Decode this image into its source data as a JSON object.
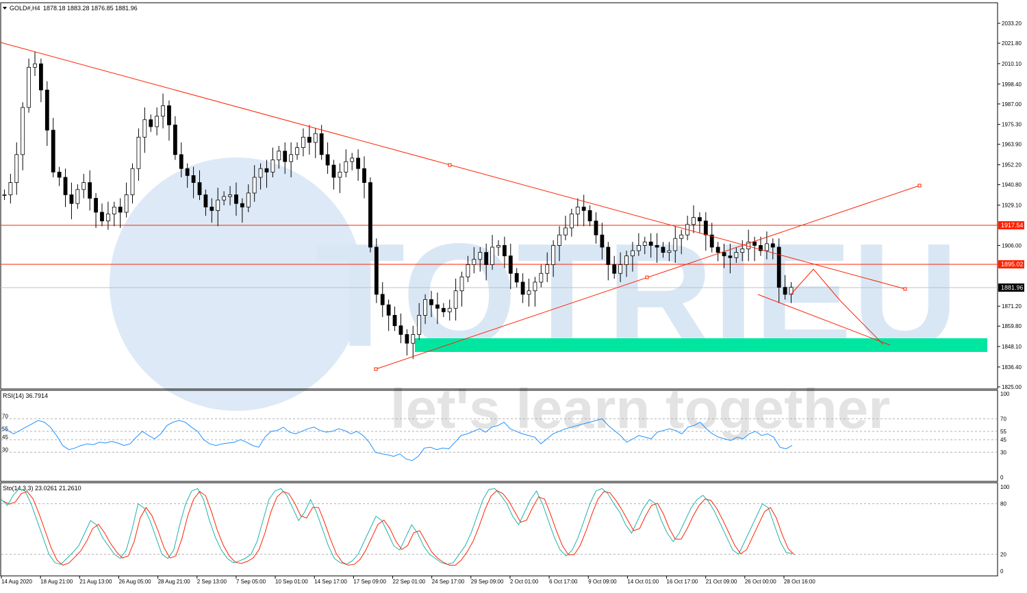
{
  "header": {
    "symbol_text": "GOLD#,H4",
    "ohlc_text": "1878.18 1883.28 1876.85 1881.96"
  },
  "price_axis": {
    "ticks": [
      "2033.20",
      "2021.80",
      "2010.10",
      "1998.40",
      "1987.00",
      "1975.30",
      "1963.90",
      "1952.20",
      "1940.80",
      "1929.10",
      "1906.00",
      "1871.20",
      "1859.80",
      "1848.10",
      "1836.40",
      "1825.00"
    ],
    "tick_values": [
      2033.2,
      2021.8,
      2010.1,
      1998.4,
      1987.0,
      1975.3,
      1963.9,
      1952.2,
      1940.8,
      1929.1,
      1906.0,
      1871.2,
      1859.8,
      1848.1,
      1836.4,
      1825.0
    ],
    "range": [
      1823.7,
      2045.0
    ]
  },
  "price_levels": [
    {
      "label": "1917.54",
      "value": 1917.54,
      "color": "#ff2200",
      "kind": "horizontal-line"
    },
    {
      "label": "1895.02",
      "value": 1895.02,
      "color": "#ff2200",
      "kind": "horizontal-line"
    },
    {
      "label": "1881.96",
      "value": 1881.96,
      "color": "#000000",
      "kind": "current-price"
    }
  ],
  "time_axis": {
    "labels": [
      "14 Aug 2020",
      "18 Aug 21:00",
      "21 Aug 13:00",
      "26 Aug 05:00",
      "28 Aug 21:00",
      "2 Sep 13:00",
      "7 Sep 05:00",
      "10 Sep 01:00",
      "14 Sep 17:00",
      "17 Sep 09:00",
      "22 Sep 01:00",
      "24 Sep 17:00",
      "29 Sep 09:00",
      "2 Oct 01:00",
      "6 Oct 17:00",
      "9 Oct 09:00",
      "14 Oct 01:00",
      "16 Oct 17:00",
      "21 Oct 09:00",
      "26 Oct 00:00",
      "28 Oct 16:00"
    ]
  },
  "rsi": {
    "label_text": "RSI(14) 36.7914",
    "value": 36.7914,
    "levels": [
      70,
      55,
      45,
      30
    ],
    "axis_labels": [
      "100",
      "70",
      "55",
      "45",
      "30",
      "0"
    ],
    "color": "#1e90ff",
    "values": [
      59,
      56,
      52,
      56,
      60,
      64,
      68,
      66,
      60,
      50,
      38,
      33,
      35,
      38,
      40,
      39,
      42,
      41,
      43,
      41,
      38,
      40,
      48,
      55,
      50,
      46,
      52,
      62,
      66,
      68,
      66,
      60,
      55,
      45,
      40,
      38,
      40,
      41,
      42,
      45,
      42,
      38,
      36,
      48,
      55,
      56,
      60,
      54,
      52,
      55,
      58,
      60,
      56,
      54,
      55,
      58,
      56,
      52,
      55,
      50,
      42,
      30,
      28,
      27,
      25,
      28,
      22,
      20,
      25,
      35,
      36,
      33,
      35,
      34,
      42,
      50,
      52,
      55,
      58,
      54,
      60,
      62,
      66,
      58,
      55,
      52,
      50,
      48,
      40,
      46,
      52,
      55,
      58,
      60,
      62,
      64,
      66,
      68,
      70,
      62,
      56,
      50,
      42,
      46,
      50,
      48,
      46,
      54,
      56,
      58,
      56,
      52,
      60,
      62,
      66,
      58,
      52,
      48,
      46,
      44,
      48,
      46,
      52,
      55,
      50,
      52,
      48,
      36,
      34,
      38
    ],
    "last_value": 36.7914
  },
  "stochastic": {
    "label_text": "Sto(14,3,3) 23.0261 21.2610",
    "main": 23.0261,
    "signal": 21.261,
    "levels": [
      80,
      20
    ],
    "axis_labels": [
      "100",
      "80",
      "20",
      "0"
    ],
    "main_color": "#20b2aa",
    "signal_color": "#ff2200",
    "values": [
      85,
      78,
      90,
      98,
      95,
      80,
      60,
      40,
      20,
      10,
      8,
      15,
      22,
      30,
      45,
      60,
      55,
      40,
      30,
      20,
      15,
      25,
      50,
      80,
      75,
      60,
      40,
      20,
      15,
      25,
      55,
      80,
      95,
      98,
      85,
      60,
      40,
      25,
      15,
      10,
      12,
      15,
      20,
      35,
      60,
      85,
      95,
      98,
      90,
      75,
      60,
      70,
      85,
      70,
      50,
      30,
      15,
      10,
      8,
      12,
      20,
      35,
      50,
      65,
      60,
      45,
      30,
      25,
      40,
      55,
      45,
      30,
      20,
      15,
      10,
      8,
      10,
      20,
      30,
      45,
      65,
      85,
      97,
      98,
      90,
      80,
      65,
      55,
      70,
      85,
      95,
      80,
      60,
      40,
      25,
      18,
      25,
      40,
      60,
      80,
      95,
      98,
      92,
      80,
      70,
      55,
      45,
      60,
      75,
      85,
      80,
      60,
      45,
      35,
      45,
      60,
      75,
      85,
      90,
      82,
      70,
      55,
      40,
      25,
      20,
      35,
      50,
      65,
      80,
      75,
      55,
      35,
      22,
      21
    ]
  },
  "price_series": {
    "color": "#000000",
    "closes": [
      1935,
      1942,
      1958,
      1985,
      2008,
      2010,
      1995,
      1972,
      1948,
      1945,
      1935,
      1930,
      1938,
      1942,
      1933,
      1925,
      1920,
      1924,
      1928,
      1925,
      1935,
      1950,
      1968,
      1978,
      1974,
      1980,
      1986,
      1975,
      1958,
      1950,
      1946,
      1942,
      1935,
      1928,
      1926,
      1932,
      1934,
      1935,
      1930,
      1928,
      1936,
      1945,
      1950,
      1948,
      1955,
      1960,
      1954,
      1958,
      1962,
      1968,
      1965,
      1970,
      1958,
      1952,
      1945,
      1948,
      1954,
      1956,
      1950,
      1942,
      1905,
      1878,
      1872,
      1866,
      1860,
      1855,
      1850,
      1855,
      1866,
      1875,
      1872,
      1870,
      1868,
      1870,
      1880,
      1888,
      1895,
      1898,
      1902,
      1895,
      1905,
      1906,
      1900,
      1890,
      1885,
      1878,
      1880,
      1885,
      1890,
      1895,
      1906,
      1912,
      1916,
      1924,
      1928,
      1926,
      1920,
      1912,
      1905,
      1895,
      1890,
      1895,
      1900,
      1903,
      1906,
      1908,
      1906,
      1905,
      1902,
      1903,
      1910,
      1912,
      1918,
      1922,
      1920,
      1912,
      1905,
      1902,
      1900,
      1899,
      1902,
      1904,
      1908,
      1906,
      1903,
      1907,
      1905,
      1882,
      1878,
      1881.96
    ]
  },
  "chart_data": {
    "type": "line",
    "title": "GOLD#,H4",
    "subtitle": "1878.18 1883.28 1876.85 1881.96",
    "xlabel": "",
    "ylabel": "",
    "ylim": [
      1825.0,
      2033.2
    ],
    "categories": [
      "14 Aug 2020",
      "18 Aug 21:00",
      "21 Aug 13:00",
      "26 Aug 05:00",
      "28 Aug 21:00",
      "2 Sep 13:00",
      "7 Sep 05:00",
      "10 Sep 01:00",
      "14 Sep 17:00",
      "17 Sep 09:00",
      "22 Sep 01:00",
      "24 Sep 17:00",
      "29 Sep 09:00",
      "2 Oct 01:00",
      "6 Oct 17:00",
      "9 Oct 09:00",
      "14 Oct 01:00",
      "16 Oct 17:00",
      "21 Oct 09:00",
      "26 Oct 00:00",
      "28 Oct 16:00"
    ],
    "series": [
      {
        "values": [
          1945,
          2005,
          1930,
          1925,
          1985,
          1935,
          1925,
          1950,
          1968,
          1950,
          1875,
          1852,
          1890,
          1910,
          1880,
          1928,
          1888,
          1908,
          1925,
          1905,
          1882
        ]
      }
    ],
    "horizontal_levels": [
      1917.54,
      1895.02
    ],
    "current_price": 1881.96,
    "grid": false,
    "legend": "none"
  },
  "watermark": {
    "brand_text": "TOTRIEU",
    "tagline_text": "let's learn together",
    "color": "#d6e6f5"
  },
  "colors": {
    "trendline": "#ff2200",
    "support_zone": "#00e6a0",
    "candle": "#000000",
    "grid_dotted": "#b0b0b0"
  }
}
